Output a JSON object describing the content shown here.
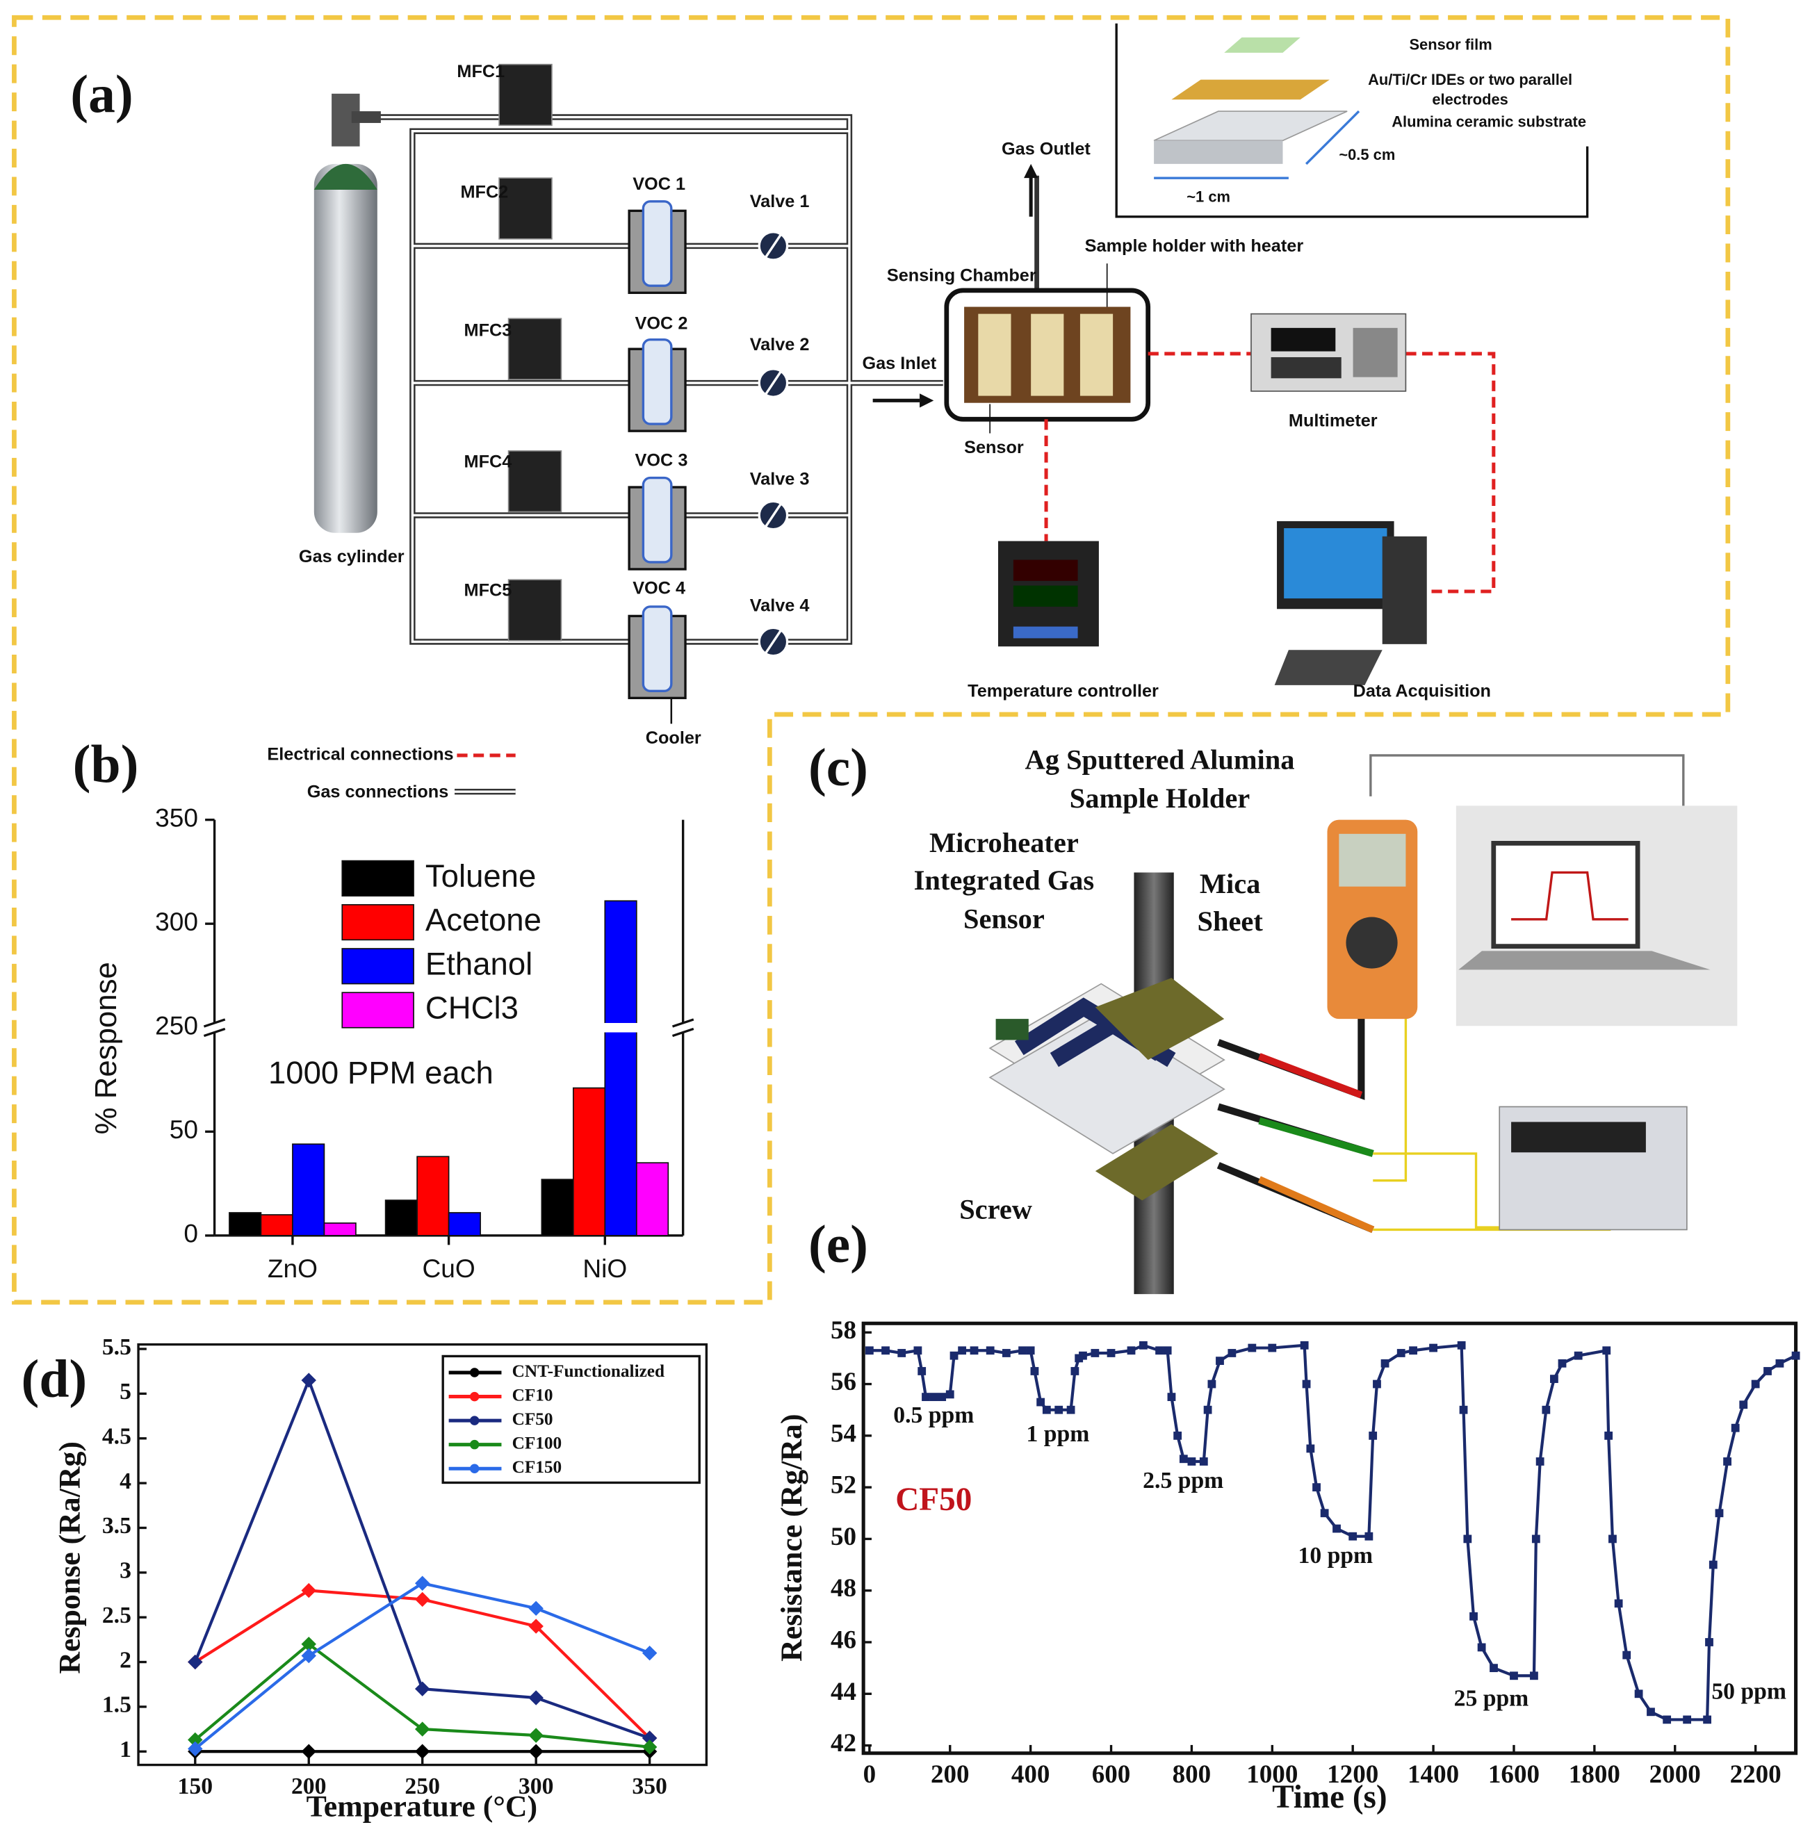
{
  "panels": {
    "a": {
      "label": "(a)",
      "mfc": [
        "MFC1",
        "MFC2",
        "MFC3",
        "MFC4",
        "MFC5"
      ],
      "voc": [
        "VOC 1",
        "VOC 2",
        "VOC 3",
        "VOC 4"
      ],
      "valves": [
        "Valve 1",
        "Valve 2",
        "Valve 3",
        "Valve 4"
      ],
      "cylinder": "Gas cylinder",
      "cooler": "Cooler",
      "gas_outlet": "Gas Outlet",
      "chamber": "Sensing Chamber",
      "holder": "Sample holder with heater",
      "gas_inlet": "Gas Inlet",
      "sensor": "Sensor",
      "multimeter": "Multimeter",
      "temp_controller": "Temperature controller",
      "daq": "Data Acquisition",
      "inset": {
        "film": "Sensor film",
        "ides": [
          "Au/Ti/Cr IDEs or two parallel",
          "electrodes"
        ],
        "substrate": "Alumina ceramic substrate",
        "width": "~0.5 cm",
        "length": "~1 cm"
      },
      "legend": {
        "electrical": "Electrical connections",
        "gas": "Gas connections"
      }
    },
    "b": {
      "label": "(b)"
    },
    "c": {
      "label": "(c)",
      "holder": [
        "Ag Sputtered Alumina",
        "Sample Holder"
      ],
      "sensor": [
        "Microheater",
        "Integrated Gas",
        "Sensor"
      ],
      "mica": [
        "Mica",
        "Sheet"
      ],
      "screw": "Screw"
    },
    "d": {
      "label": "(d)"
    },
    "e": {
      "label": "(e)"
    }
  },
  "chart_data": [
    {
      "type": "bar",
      "ylabel": "% Response",
      "categories": [
        "ZnO",
        "CuO",
        "NiO"
      ],
      "series": [
        {
          "name": "Toluene",
          "color": "#000000",
          "values": [
            11,
            17,
            27
          ]
        },
        {
          "name": "Acetone",
          "color": "#ff0000",
          "values": [
            10,
            38,
            71
          ]
        },
        {
          "name": "Ethanol",
          "color": "#0000ff",
          "values": [
            44,
            11,
            311
          ]
        },
        {
          "name": "CHCl3",
          "color": "#ff00ff",
          "values": [
            6,
            null,
            35
          ]
        }
      ],
      "ylim": [
        0,
        350
      ],
      "yticks": [
        0,
        50,
        250,
        300,
        350
      ],
      "ybreak": [
        100,
        250
      ],
      "annotation": "1000 PPM each",
      "legend": "upper left"
    },
    {
      "type": "line",
      "xlabel": "Temperature (°C)",
      "ylabel": "Response (Ra/Rg)",
      "x": [
        150,
        200,
        250,
        300,
        350
      ],
      "series": [
        {
          "name": "CNT-Functionalized",
          "color": "#000000",
          "values": [
            1,
            1,
            1,
            1,
            1
          ]
        },
        {
          "name": "CF10",
          "color": "#ff1a1a",
          "values": [
            2,
            2.8,
            2.7,
            2.4,
            1.15
          ]
        },
        {
          "name": "CF50",
          "color": "#1a2a80",
          "values": [
            2,
            5.15,
            1.7,
            1.6,
            1.15
          ]
        },
        {
          "name": "CF100",
          "color": "#1a8a1a",
          "values": [
            1.13,
            2.2,
            1.25,
            1.18,
            1.05
          ]
        },
        {
          "name": "CF150",
          "color": "#2a6ae8",
          "values": [
            1.03,
            2.07,
            2.88,
            2.6,
            2.1
          ]
        }
      ],
      "xlim": [
        125,
        375
      ],
      "xticks": [
        150,
        200,
        250,
        300,
        350
      ],
      "ylim": [
        0.85,
        5.55
      ],
      "yticks": [
        1,
        1.5,
        2,
        2.5,
        3,
        3.5,
        4,
        4.5,
        5,
        5.5
      ],
      "legend": "upper right"
    },
    {
      "type": "line",
      "xlabel": "Time (s)",
      "ylabel": "Resistance (Rg/Ra)",
      "color": "#1a2a6c",
      "annotations": [
        "0.5 ppm",
        "1 ppm",
        "2.5 ppm",
        "10 ppm",
        "25 ppm",
        "50 ppm",
        "CF50"
      ],
      "x": [
        0,
        40,
        80,
        120,
        130,
        140,
        160,
        180,
        200,
        210,
        230,
        260,
        300,
        340,
        380,
        400,
        410,
        425,
        440,
        470,
        500,
        510,
        520,
        530,
        560,
        600,
        650,
        680,
        720,
        740,
        750,
        765,
        780,
        800,
        830,
        840,
        850,
        870,
        900,
        950,
        1000,
        1080,
        1085,
        1095,
        1110,
        1130,
        1160,
        1200,
        1240,
        1250,
        1260,
        1280,
        1320,
        1350,
        1400,
        1470,
        1475,
        1485,
        1500,
        1520,
        1550,
        1600,
        1650,
        1655,
        1665,
        1680,
        1700,
        1720,
        1760,
        1830,
        1835,
        1845,
        1860,
        1880,
        1910,
        1940,
        1980,
        2030,
        2080,
        2085,
        2095,
        2110,
        2130,
        2150,
        2170,
        2200,
        2230,
        2260,
        2300
      ],
      "values": [
        57.3,
        57.3,
        57.2,
        57.3,
        56.5,
        55.5,
        55.5,
        55.5,
        55.6,
        57.1,
        57.3,
        57.3,
        57.3,
        57.2,
        57.3,
        57.3,
        56.5,
        55.3,
        55,
        55,
        55,
        56.5,
        57,
        57.1,
        57.2,
        57.2,
        57.3,
        57.5,
        57.3,
        57.3,
        55.5,
        54,
        53.1,
        53,
        53,
        55,
        56,
        56.9,
        57.2,
        57.4,
        57.4,
        57.5,
        56,
        53.5,
        52,
        51,
        50.4,
        50.1,
        50.1,
        54,
        56,
        56.8,
        57.2,
        57.3,
        57.4,
        57.5,
        55,
        50,
        47,
        45.8,
        45,
        44.7,
        44.7,
        50,
        53,
        55,
        56.2,
        56.8,
        57.1,
        57.3,
        54,
        50,
        47.5,
        45.5,
        44,
        43.3,
        43,
        43,
        43,
        46,
        49,
        51,
        53,
        54.3,
        55.2,
        56,
        56.5,
        56.8,
        57.1
      ],
      "xlim": [
        -15,
        2300
      ],
      "xticks": [
        0,
        200,
        400,
        600,
        800,
        1000,
        1200,
        1400,
        1600,
        1800,
        2000,
        2200
      ],
      "ylim": [
        41.7,
        58.35
      ],
      "yticks": [
        42,
        44,
        46,
        48,
        50,
        52,
        54,
        56,
        58
      ]
    }
  ]
}
